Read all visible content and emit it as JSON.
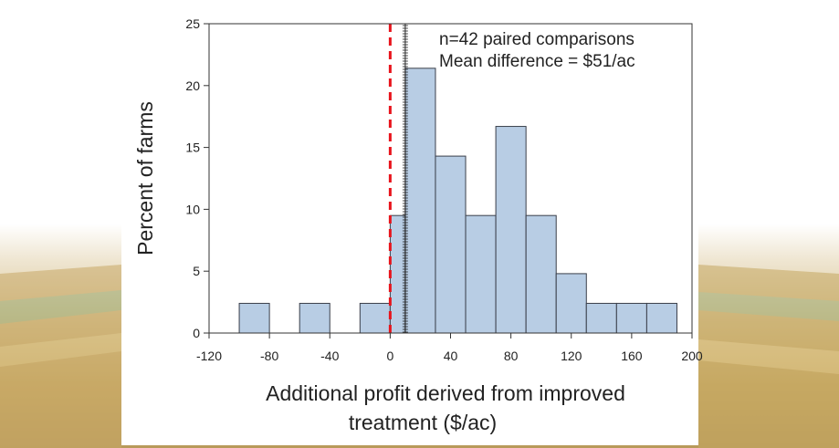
{
  "chart_data": {
    "type": "bar",
    "subtype": "histogram",
    "bin_edges": [
      -120,
      -100,
      -80,
      -60,
      -40,
      -20,
      0,
      10,
      30,
      50,
      70,
      90,
      110,
      130,
      150,
      170,
      190
    ],
    "values": [
      0,
      2.4,
      0,
      2.4,
      0,
      2.4,
      9.5,
      21.4,
      14.3,
      9.5,
      16.7,
      9.5,
      4.8,
      2.4,
      2.4,
      2.4
    ],
    "xlabel": "Additional profit derived from improved treatment  ($/ac)",
    "xlabel_line1": "Additional profit derived from improved",
    "xlabel_line2": "treatment  ($/ac)",
    "ylabel": "Percent of farms",
    "xlim": [
      -120,
      200
    ],
    "ylim": [
      0,
      25
    ],
    "xticks": [
      -120,
      -80,
      -40,
      0,
      40,
      80,
      120,
      160,
      200
    ],
    "yticks": [
      0,
      5,
      10,
      15,
      20,
      25
    ],
    "reference_lines": [
      {
        "x": 0,
        "style": "dashed",
        "color": "#e8141c"
      },
      {
        "x": 10,
        "style": "rug",
        "color": "#222222"
      }
    ],
    "annotations": [
      "n=42 paired comparisons",
      "Mean difference = $51/ac"
    ],
    "bar_color": "#b8cde4",
    "bar_edge": "#3a3f4a",
    "grid": false
  }
}
